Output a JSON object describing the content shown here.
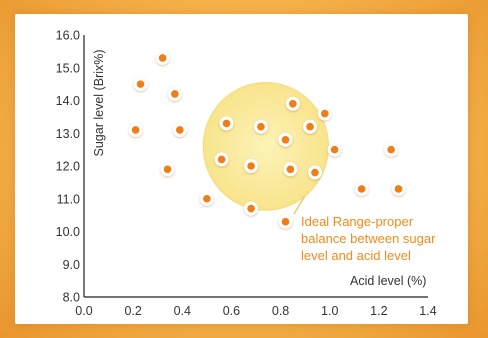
{
  "chart_data": {
    "type": "scatter",
    "title": "",
    "xlabel": "Acid level (%)",
    "ylabel": "Sugar level (Brix%)",
    "xlim": [
      0.0,
      1.4
    ],
    "ylim": [
      8.0,
      16.0
    ],
    "xticks": [
      "0.0",
      "0.2",
      "0.4",
      "0.6",
      "0.8",
      "1.0",
      "1.2",
      "1.4"
    ],
    "yticks": [
      "8.0",
      "9.0",
      "10.0",
      "11.0",
      "12.0",
      "13.0",
      "14.0",
      "15.0",
      "16.0"
    ],
    "points": [
      {
        "x": 0.32,
        "y": 15.3
      },
      {
        "x": 0.23,
        "y": 14.5
      },
      {
        "x": 0.37,
        "y": 14.2
      },
      {
        "x": 0.21,
        "y": 13.1
      },
      {
        "x": 0.39,
        "y": 13.1
      },
      {
        "x": 0.34,
        "y": 11.9
      },
      {
        "x": 0.5,
        "y": 11.0
      },
      {
        "x": 0.58,
        "y": 13.3
      },
      {
        "x": 0.56,
        "y": 12.2
      },
      {
        "x": 0.68,
        "y": 12.0
      },
      {
        "x": 0.72,
        "y": 13.2
      },
      {
        "x": 0.68,
        "y": 10.7
      },
      {
        "x": 0.82,
        "y": 12.8
      },
      {
        "x": 0.85,
        "y": 13.9
      },
      {
        "x": 0.84,
        "y": 11.9
      },
      {
        "x": 0.82,
        "y": 10.3
      },
      {
        "x": 0.92,
        "y": 13.2
      },
      {
        "x": 0.94,
        "y": 11.8
      },
      {
        "x": 0.98,
        "y": 13.6
      },
      {
        "x": 1.02,
        "y": 12.5
      },
      {
        "x": 1.13,
        "y": 11.3
      },
      {
        "x": 1.25,
        "y": 12.5
      },
      {
        "x": 1.28,
        "y": 11.3
      }
    ],
    "highlight_region": {
      "x": 0.74,
      "y": 12.6,
      "rx": 0.255,
      "ry": 1.95
    },
    "annotation": [
      "Ideal Range-proper",
      "balance between sugar",
      "level and acid level"
    ],
    "colors": {
      "point": "#f07d12",
      "highlight_fill": "#fbeea0",
      "annotation_text": "#f28a1a",
      "axis": "#222222"
    }
  }
}
